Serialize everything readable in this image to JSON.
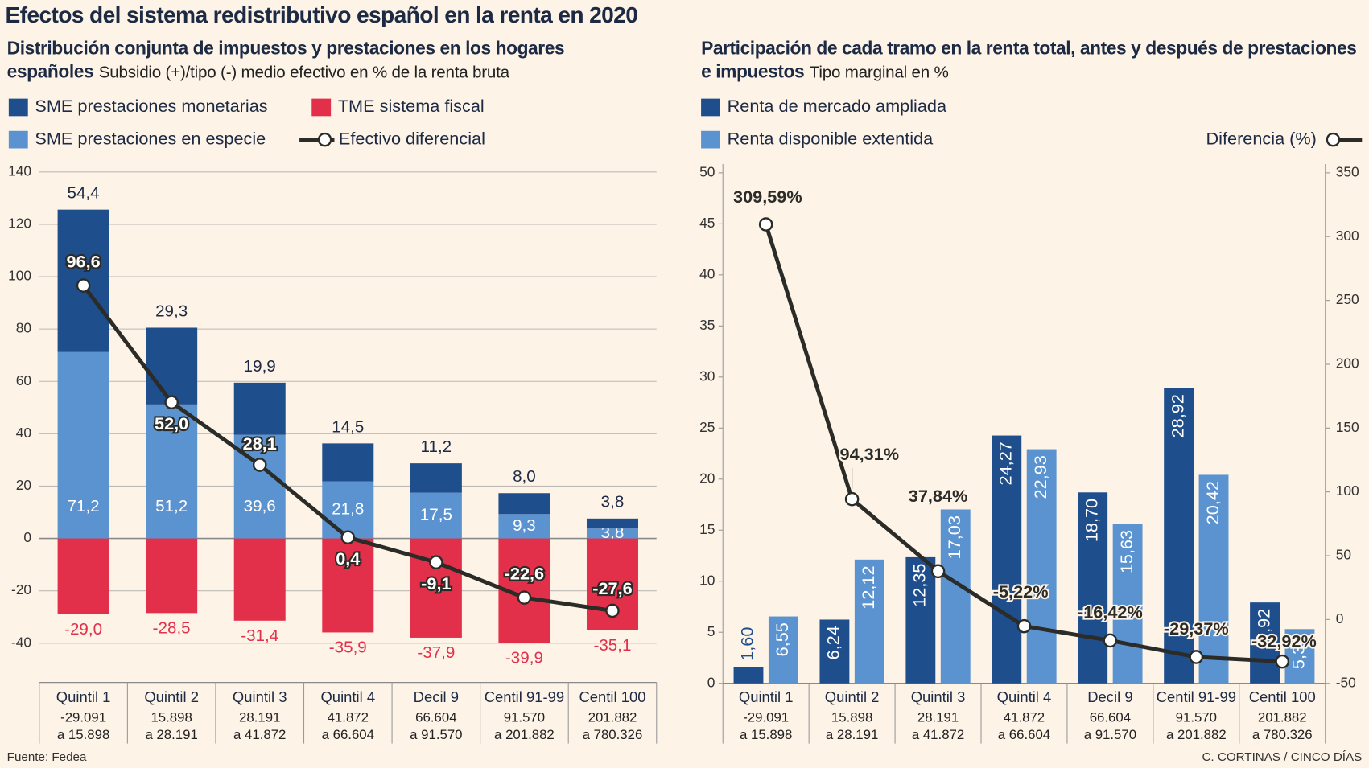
{
  "title": "Efectos del sistema redistributivo español en la renta en 2020",
  "source": "Fuente: Fedea",
  "credit": "C. CORTINAS / CINCO DÍAS",
  "chart_data": [
    {
      "type": "bar",
      "stacked": true,
      "grid": true,
      "title": "Distribución conjunta de impuestos y prestaciones en los hogares españoles",
      "subtitle": "Subsidio (+)/tipo (-) medio efectivo en % de la renta bruta",
      "categories": [
        "Quintil 1",
        "Quintil 2",
        "Quintil 3",
        "Quintil 4",
        "Decil 9",
        "Centil 91-99",
        "Centil 100"
      ],
      "category_ranges": [
        [
          "-29.091",
          "a 15.898"
        ],
        [
          "15.898",
          "a 28.191"
        ],
        [
          "28.191",
          "a 41.872"
        ],
        [
          "41.872",
          "a 66.604"
        ],
        [
          "66.604",
          "a 91.570"
        ],
        [
          "91.570",
          "a 201.882"
        ],
        [
          "201.882",
          "a 780.326"
        ]
      ],
      "ylim": [
        -55,
        140
      ],
      "yticks": [
        -40,
        -20,
        0,
        20,
        40,
        60,
        80,
        100,
        120,
        140
      ],
      "series": [
        {
          "name": "SME prestaciones en especie",
          "color": "#5b93d1",
          "values": [
            71.2,
            51.2,
            39.6,
            21.8,
            17.5,
            9.3,
            3.8
          ],
          "value_labels": [
            "71,2",
            "51,2",
            "39,6",
            "21,8",
            "17,5",
            "9,3",
            "3,8"
          ]
        },
        {
          "name": "SME prestaciones monetarias",
          "color": "#1f4e8c",
          "values": [
            54.4,
            29.3,
            19.9,
            14.5,
            11.2,
            8.0,
            3.8
          ],
          "value_labels": [
            "54,4",
            "29,3",
            "19,9",
            "14,5",
            "11,2",
            "8,0",
            "3,8"
          ]
        },
        {
          "name": "TME sistema fiscal",
          "color": "#e3304a",
          "values": [
            -29.0,
            -28.5,
            -31.4,
            -35.9,
            -37.9,
            -39.9,
            -35.1
          ],
          "value_labels": [
            "-29,0",
            "-28,5",
            "-31,4",
            "-35,9",
            "-37,9",
            "-39,9",
            "-35,1"
          ]
        },
        {
          "name": "Efectivo diferencial",
          "type": "line",
          "color": "#2b2b27",
          "values": [
            96.6,
            52.0,
            28.1,
            0.4,
            -9.1,
            -22.6,
            -27.6
          ],
          "value_labels": [
            "96,6",
            "52,0",
            "28,1",
            "0,4",
            "-9,1",
            "-22,6",
            "-27,6"
          ]
        }
      ]
    },
    {
      "type": "bar",
      "stacked": false,
      "grid": false,
      "title": "Participación de cada tramo en la renta total, antes y después de prestaciones e impuestos",
      "subtitle": "Tipo marginal en %",
      "categories": [
        "Quintil 1",
        "Quintil 2",
        "Quintil 3",
        "Quintil 4",
        "Decil 9",
        "Centil 91-99",
        "Centil 100"
      ],
      "category_ranges": [
        [
          "-29.091",
          "a 15.898"
        ],
        [
          "15.898",
          "a 28.191"
        ],
        [
          "28.191",
          "a 41.872"
        ],
        [
          "41.872",
          "a 66.604"
        ],
        [
          "66.604",
          "a 91.570"
        ],
        [
          "91.570",
          "a 201.882"
        ],
        [
          "201.882",
          "a 780.326"
        ]
      ],
      "ylim": [
        0,
        50
      ],
      "yticks": [
        0,
        5,
        10,
        15,
        20,
        25,
        30,
        35,
        40,
        45,
        50
      ],
      "y2lim": [
        -50,
        350
      ],
      "y2ticks": [
        -50,
        0,
        50,
        100,
        150,
        200,
        250,
        300,
        350
      ],
      "series": [
        {
          "name": "Renta de mercado ampliada",
          "color": "#1f4e8c",
          "values": [
            1.6,
            6.24,
            12.35,
            24.27,
            18.7,
            28.92,
            7.92
          ],
          "value_labels": [
            "1,60",
            "6,24",
            "12,35",
            "24,27",
            "18,70",
            "28,92",
            "7,92"
          ]
        },
        {
          "name": "Renta disponible extentida",
          "color": "#5b93d1",
          "values": [
            6.55,
            12.12,
            17.03,
            22.93,
            15.63,
            20.42,
            5.31
          ],
          "value_labels": [
            "6,55",
            "12,12",
            "17,03",
            "22,93",
            "15,63",
            "20,42",
            "5,31"
          ]
        },
        {
          "name": "Diferencia (%)",
          "type": "line",
          "axis": "y2",
          "color": "#2b2b27",
          "values": [
            309.59,
            94.31,
            37.84,
            -5.22,
            -16.42,
            -29.37,
            -32.92
          ],
          "value_labels": [
            "309,59%",
            "94,31%",
            "37,84%",
            "-5,22%",
            "-16,42%",
            "-29,37%",
            "-32,92%"
          ]
        }
      ]
    }
  ]
}
